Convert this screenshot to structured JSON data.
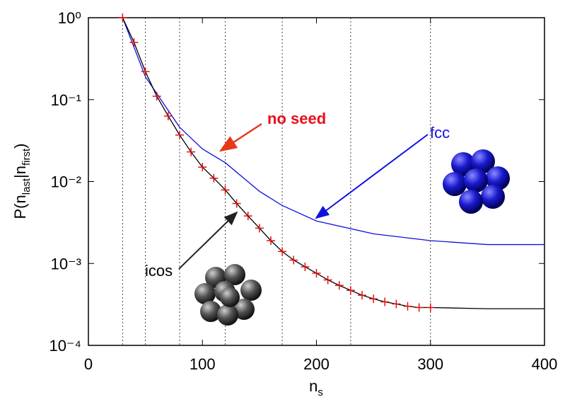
{
  "chart_data": {
    "type": "line",
    "log_y": true,
    "x_label": [
      "n",
      "s"
    ],
    "y_label": [
      "P(n",
      "last",
      "|n",
      "first",
      ")"
    ],
    "xlim": [
      0,
      400
    ],
    "xticks": [
      0,
      100,
      200,
      300,
      400
    ],
    "ylim": [
      0.0001,
      1
    ],
    "yticks": [
      {
        "value": 0.0001,
        "label": "10⁻⁴"
      },
      {
        "value": 0.001,
        "label": "10⁻³"
      },
      {
        "value": 0.01,
        "label": "10⁻²"
      },
      {
        "value": 0.1,
        "label": "10⁻¹"
      },
      {
        "value": 1,
        "label": "10⁰"
      }
    ],
    "dotted_lines_x": [
      30,
      50,
      80,
      120,
      170,
      230,
      300,
      400
    ],
    "series": [
      {
        "name": "fcc",
        "color": "#1010e0",
        "style": "line",
        "x": [
          30,
          50,
          80,
          100,
          120,
          150,
          170,
          200,
          250,
          300,
          350,
          400
        ],
        "values": [
          1,
          0.19,
          0.046,
          0.025,
          0.017,
          0.0076,
          0.0051,
          0.0033,
          0.0023,
          0.0019,
          0.0017,
          0.0017
        ]
      },
      {
        "name": "icos",
        "color": "#000000",
        "style": "line",
        "x": [
          30,
          40,
          50,
          60,
          70,
          80,
          90,
          100,
          110,
          120,
          130,
          140,
          150,
          160,
          170,
          180,
          190,
          200,
          210,
          220,
          230,
          240,
          250,
          260,
          270,
          280,
          290,
          300,
          350,
          400
        ],
        "values": [
          1,
          0.5,
          0.22,
          0.11,
          0.063,
          0.037,
          0.023,
          0.015,
          0.011,
          0.0079,
          0.0054,
          0.0038,
          0.0027,
          0.0019,
          0.0014,
          0.0011,
          0.00091,
          0.00076,
          0.00063,
          0.00054,
          0.00047,
          0.00041,
          0.00037,
          0.00034,
          0.00032,
          0.0003,
          0.00029,
          0.00029,
          0.00028,
          0.00028
        ]
      },
      {
        "name": "no seed",
        "color": "#e01010",
        "style": "plus",
        "x": [
          30,
          40,
          50,
          60,
          70,
          80,
          90,
          100,
          110,
          120,
          130,
          140,
          150,
          160,
          170,
          180,
          190,
          200,
          210,
          220,
          230,
          240,
          250,
          260,
          270,
          280,
          290,
          300
        ],
        "values": [
          1,
          0.5,
          0.22,
          0.11,
          0.063,
          0.037,
          0.023,
          0.015,
          0.011,
          0.0079,
          0.0054,
          0.0038,
          0.0027,
          0.0019,
          0.0014,
          0.0011,
          0.00091,
          0.00076,
          0.00063,
          0.00054,
          0.00047,
          0.00041,
          0.00037,
          0.00034,
          0.00032,
          0.0003,
          0.00029,
          0.00029
        ]
      }
    ]
  }
}
